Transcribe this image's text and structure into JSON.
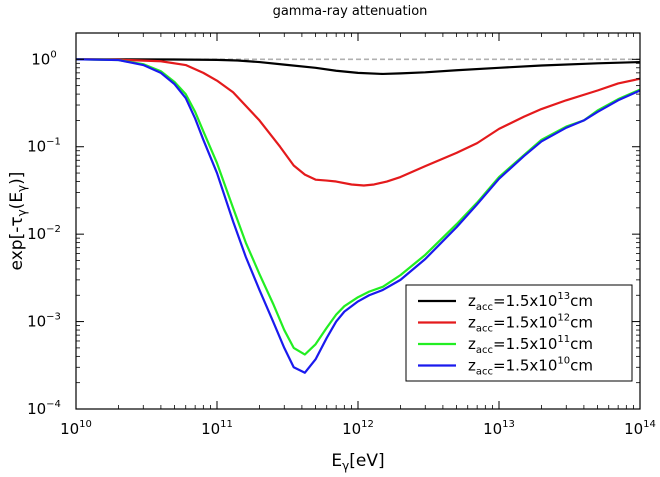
{
  "chart_data": {
    "type": "line",
    "title": "gamma-ray attenuation",
    "xlabel": {
      "base": "E",
      "sub": "γ",
      "rest": "[eV]"
    },
    "ylabel": {
      "pre": "exp[-τ",
      "sub": "γ",
      "mid": "(E",
      "sub2": "γ",
      "post": ")]"
    },
    "x_scale": "log",
    "y_scale": "log",
    "xlim": [
      10000000000.0,
      100000000000000.0
    ],
    "ylim": [
      0.0001,
      2
    ],
    "x_ticks": [
      {
        "value": 10000000000.0,
        "base": "10",
        "exp": "10"
      },
      {
        "value": 100000000000.0,
        "base": "10",
        "exp": "11"
      },
      {
        "value": 1000000000000.0,
        "base": "10",
        "exp": "12"
      },
      {
        "value": 10000000000000.0,
        "base": "10",
        "exp": "13"
      },
      {
        "value": 100000000000000.0,
        "base": "10",
        "exp": "14"
      }
    ],
    "y_ticks": [
      {
        "value": 0.0001,
        "base": "10",
        "exp": "−4"
      },
      {
        "value": 0.001,
        "base": "10",
        "exp": "−3"
      },
      {
        "value": 0.01,
        "base": "10",
        "exp": "−2"
      },
      {
        "value": 0.1,
        "base": "10",
        "exp": "−1"
      },
      {
        "value": 1,
        "base": "10",
        "exp": "0"
      }
    ],
    "reference_line": {
      "y": 1.0,
      "color": "#b0b0b0",
      "style": "dashed"
    },
    "legend_position": "lower-right",
    "grid": false,
    "series": [
      {
        "legend": {
          "pre": "z",
          "sub": "acc",
          "mid": "=1.5x10",
          "sup": "13",
          "post": "cm"
        },
        "color": "#000000",
        "points": [
          [
            10000000000.0,
            1.0
          ],
          [
            20000000000.0,
            1.0
          ],
          [
            50000000000.0,
            0.995
          ],
          [
            100000000000.0,
            0.985
          ],
          [
            140000000000.0,
            0.97
          ],
          [
            200000000000.0,
            0.93
          ],
          [
            300000000000.0,
            0.87
          ],
          [
            500000000000.0,
            0.8
          ],
          [
            700000000000.0,
            0.74
          ],
          [
            1000000000000.0,
            0.7
          ],
          [
            1500000000000.0,
            0.68
          ],
          [
            2000000000000.0,
            0.69
          ],
          [
            3000000000000.0,
            0.71
          ],
          [
            5000000000000.0,
            0.75
          ],
          [
            10000000000000.0,
            0.8
          ],
          [
            20000000000000.0,
            0.85
          ],
          [
            50000000000000.0,
            0.9
          ],
          [
            100000000000000.0,
            0.93
          ]
        ]
      },
      {
        "legend": {
          "pre": "z",
          "sub": "acc",
          "mid": "=1.5x10",
          "sup": "12",
          "post": "cm"
        },
        "color": "#e41a1c",
        "points": [
          [
            10000000000.0,
            1.0
          ],
          [
            20000000000.0,
            0.99
          ],
          [
            40000000000.0,
            0.95
          ],
          [
            60000000000.0,
            0.86
          ],
          [
            80000000000.0,
            0.7
          ],
          [
            100000000000.0,
            0.57
          ],
          [
            130000000000.0,
            0.42
          ],
          [
            200000000000.0,
            0.2
          ],
          [
            280000000000.0,
            0.1
          ],
          [
            350000000000.0,
            0.061
          ],
          [
            420000000000.0,
            0.048
          ],
          [
            500000000000.0,
            0.042
          ],
          [
            600000000000.0,
            0.041
          ],
          [
            700000000000.0,
            0.04
          ],
          [
            900000000000.0,
            0.037
          ],
          [
            1100000000000.0,
            0.036
          ],
          [
            1300000000000.0,
            0.037
          ],
          [
            1600000000000.0,
            0.04
          ],
          [
            2000000000000.0,
            0.045
          ],
          [
            3000000000000.0,
            0.06
          ],
          [
            5000000000000.0,
            0.085
          ],
          [
            7000000000000.0,
            0.11
          ],
          [
            10000000000000.0,
            0.16
          ],
          [
            15000000000000.0,
            0.22
          ],
          [
            20000000000000.0,
            0.27
          ],
          [
            30000000000000.0,
            0.34
          ],
          [
            50000000000000.0,
            0.44
          ],
          [
            70000000000000.0,
            0.53
          ],
          [
            100000000000000.0,
            0.6
          ]
        ]
      },
      {
        "legend": {
          "pre": "z",
          "sub": "acc",
          "mid": "=1.5x10",
          "sup": "11",
          "post": "cm"
        },
        "color": "#22ee22",
        "points": [
          [
            10000000000.0,
            1.0
          ],
          [
            20000000000.0,
            0.98
          ],
          [
            30000000000.0,
            0.88
          ],
          [
            40000000000.0,
            0.73
          ],
          [
            50000000000.0,
            0.55
          ],
          [
            60000000000.0,
            0.4
          ],
          [
            70000000000.0,
            0.25
          ],
          [
            80000000000.0,
            0.15
          ],
          [
            100000000000.0,
            0.065
          ],
          [
            130000000000.0,
            0.02
          ],
          [
            160000000000.0,
            0.008
          ],
          [
            200000000000.0,
            0.0035
          ],
          [
            250000000000.0,
            0.0016
          ],
          [
            300000000000.0,
            0.0008
          ],
          [
            350000000000.0,
            0.0005
          ],
          [
            420000000000.0,
            0.00042
          ],
          [
            500000000000.0,
            0.00055
          ],
          [
            600000000000.0,
            0.00085
          ],
          [
            700000000000.0,
            0.0012
          ],
          [
            800000000000.0,
            0.0015
          ],
          [
            1000000000000.0,
            0.0019
          ],
          [
            1200000000000.0,
            0.0022
          ],
          [
            1500000000000.0,
            0.0025
          ],
          [
            2000000000000.0,
            0.0034
          ],
          [
            3000000000000.0,
            0.0058
          ],
          [
            5000000000000.0,
            0.013
          ],
          [
            7000000000000.0,
            0.023
          ],
          [
            10000000000000.0,
            0.045
          ],
          [
            15000000000000.0,
            0.08
          ],
          [
            20000000000000.0,
            0.12
          ],
          [
            30000000000000.0,
            0.17
          ],
          [
            40000000000000.0,
            0.2
          ],
          [
            50000000000000.0,
            0.26
          ],
          [
            70000000000000.0,
            0.35
          ],
          [
            100000000000000.0,
            0.45
          ]
        ]
      },
      {
        "legend": {
          "pre": "z",
          "sub": "acc",
          "mid": "=1.5x10",
          "sup": "10",
          "post": "cm"
        },
        "color": "#1a1aee",
        "points": [
          [
            10000000000.0,
            1.0
          ],
          [
            20000000000.0,
            0.98
          ],
          [
            30000000000.0,
            0.86
          ],
          [
            40000000000.0,
            0.7
          ],
          [
            50000000000.0,
            0.52
          ],
          [
            60000000000.0,
            0.36
          ],
          [
            70000000000.0,
            0.21
          ],
          [
            80000000000.0,
            0.12
          ],
          [
            100000000000.0,
            0.05
          ],
          [
            130000000000.0,
            0.014
          ],
          [
            160000000000.0,
            0.0055
          ],
          [
            200000000000.0,
            0.0023
          ],
          [
            250000000000.0,
            0.001
          ],
          [
            300000000000.0,
            0.0005
          ],
          [
            350000000000.0,
            0.0003
          ],
          [
            420000000000.0,
            0.00026
          ],
          [
            500000000000.0,
            0.00037
          ],
          [
            600000000000.0,
            0.00065
          ],
          [
            700000000000.0,
            0.001
          ],
          [
            800000000000.0,
            0.0013
          ],
          [
            1000000000000.0,
            0.0017
          ],
          [
            1200000000000.0,
            0.002
          ],
          [
            1500000000000.0,
            0.0023
          ],
          [
            2000000000000.0,
            0.003
          ],
          [
            3000000000000.0,
            0.0052
          ],
          [
            5000000000000.0,
            0.012
          ],
          [
            7000000000000.0,
            0.022
          ],
          [
            10000000000000.0,
            0.043
          ],
          [
            15000000000000.0,
            0.078
          ],
          [
            20000000000000.0,
            0.115
          ],
          [
            30000000000000.0,
            0.165
          ],
          [
            40000000000000.0,
            0.2
          ],
          [
            50000000000000.0,
            0.25
          ],
          [
            70000000000000.0,
            0.34
          ],
          [
            100000000000000.0,
            0.44
          ]
        ]
      }
    ]
  }
}
